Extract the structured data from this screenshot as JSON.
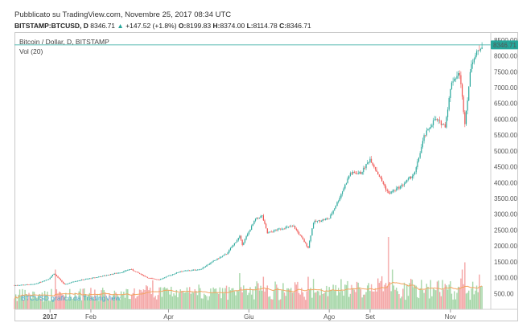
{
  "header": {
    "published": "Pubblicato su TradingView.com, Novembre 25, 2017 08:34 UTC",
    "symbol": "BITSTAMP:BTCUSD, D",
    "last": "8346.71",
    "change_arrow": "▲",
    "change": "+147.52 (+1.8%)",
    "o_label": "O:",
    "o_value": "8199.83",
    "h_label": "H:",
    "h_value": "8374.00",
    "l_label": "L:",
    "l_value": "8114.78",
    "c_label": "C:",
    "c_value": "8346.71"
  },
  "chart_title": "Bitcoin / Dollar, D, BITSTAMP",
  "volume_indicator": "Vol (20)",
  "watermark": "BTCUSD grafico da TradingView",
  "last_price_label": "8346.71",
  "colors": {
    "up": "#26a69a",
    "down": "#ef5350",
    "volume_up": "#a5d6a7",
    "volume_down": "#f4a6a6",
    "volume_ma": "#f4a460",
    "last_price_line": "#26a69a",
    "watermark": "#4aa8d6"
  },
  "chart_data": {
    "type": "candlestick",
    "title": "Bitcoin / Dollar, D, BITSTAMP",
    "ylim": [
      0,
      8750
    ],
    "y_ticks": [
      500,
      1000,
      1500,
      2000,
      2500,
      3000,
      3500,
      4000,
      4500,
      5000,
      5500,
      6000,
      6500,
      7000,
      7500,
      8000,
      8500
    ],
    "x_ticks": [
      {
        "label": "2017",
        "date": "2017-01-01",
        "bold": true
      },
      {
        "label": "Feb",
        "date": "2017-02-01"
      },
      {
        "label": "Apr",
        "date": "2017-04-01"
      },
      {
        "label": "Giu",
        "date": "2017-06-01"
      },
      {
        "label": "Ago",
        "date": "2017-08-01"
      },
      {
        "label": "Set",
        "date": "2017-09-01"
      },
      {
        "label": "Nov",
        "date": "2017-11-01"
      }
    ],
    "x_range": [
      "2016-12-05",
      "2017-11-28"
    ],
    "last_close": 8346.71,
    "grid": false,
    "close_path": [
      [
        "2016-12-05",
        760
      ],
      [
        "2016-12-20",
        790
      ],
      [
        "2016-12-31",
        960
      ],
      [
        "2017-01-04",
        1130
      ],
      [
        "2017-01-12",
        780
      ],
      [
        "2017-01-20",
        890
      ],
      [
        "2017-02-05",
        1010
      ],
      [
        "2017-02-25",
        1180
      ],
      [
        "2017-03-03",
        1270
      ],
      [
        "2017-03-17",
        980
      ],
      [
        "2017-03-25",
        940
      ],
      [
        "2017-04-10",
        1200
      ],
      [
        "2017-04-25",
        1260
      ],
      [
        "2017-05-05",
        1520
      ],
      [
        "2017-05-15",
        1750
      ],
      [
        "2017-05-25",
        2300
      ],
      [
        "2017-05-27",
        2050
      ],
      [
        "2017-06-06",
        2850
      ],
      [
        "2017-06-11",
        2950
      ],
      [
        "2017-06-15",
        2400
      ],
      [
        "2017-06-25",
        2550
      ],
      [
        "2017-07-05",
        2620
      ],
      [
        "2017-07-16",
        1950
      ],
      [
        "2017-07-20",
        2750
      ],
      [
        "2017-08-01",
        2870
      ],
      [
        "2017-08-08",
        3450
      ],
      [
        "2017-08-17",
        4300
      ],
      [
        "2017-08-25",
        4300
      ],
      [
        "2017-09-01",
        4750
      ],
      [
        "2017-09-08",
        4200
      ],
      [
        "2017-09-15",
        3650
      ],
      [
        "2017-09-25",
        3900
      ],
      [
        "2017-10-05",
        4300
      ],
      [
        "2017-10-12",
        5450
      ],
      [
        "2017-10-20",
        6000
      ],
      [
        "2017-10-28",
        5800
      ],
      [
        "2017-11-02",
        7200
      ],
      [
        "2017-11-08",
        7450
      ],
      [
        "2017-11-12",
        5900
      ],
      [
        "2017-11-17",
        7800
      ],
      [
        "2017-11-22",
        8150
      ],
      [
        "2017-11-25",
        8346.71
      ]
    ],
    "volume_spikes": [
      [
        "2017-01-05",
        0.55
      ],
      [
        "2017-03-20",
        0.4
      ],
      [
        "2017-05-25",
        0.5
      ],
      [
        "2017-06-12",
        0.45
      ],
      [
        "2017-07-16",
        0.45
      ],
      [
        "2017-09-15",
        1.0
      ],
      [
        "2017-09-18",
        0.55
      ],
      [
        "2017-11-10",
        0.55
      ],
      [
        "2017-11-12",
        0.65
      ]
    ]
  }
}
